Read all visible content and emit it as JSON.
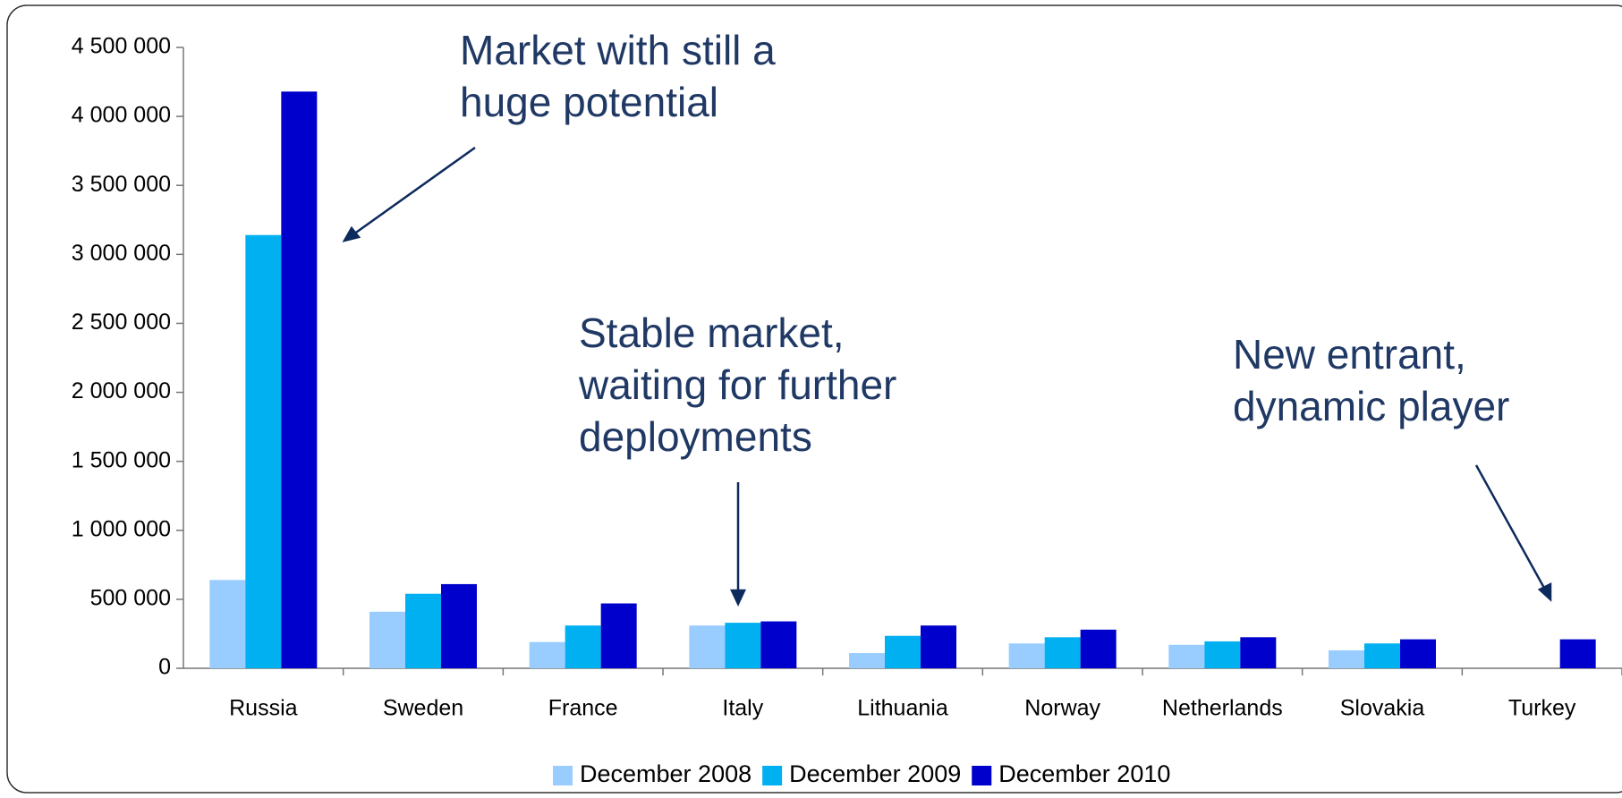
{
  "chart_data": {
    "type": "bar",
    "categories": [
      "Russia",
      "Sweden",
      "France",
      "Italy",
      "Lithuania",
      "Norway",
      "Netherlands",
      "Slovakia",
      "Turkey"
    ],
    "series": [
      {
        "name": "December 2008",
        "color": "#99ccff",
        "values": [
          640000,
          410000,
          190000,
          310000,
          110000,
          180000,
          170000,
          130000,
          null
        ]
      },
      {
        "name": "December 2009",
        "color": "#00b0f0",
        "values": [
          3140000,
          540000,
          310000,
          330000,
          235000,
          225000,
          195000,
          180000,
          null
        ]
      },
      {
        "name": "December 2010",
        "color": "#0000cc",
        "values": [
          4180000,
          610000,
          470000,
          340000,
          310000,
          280000,
          225000,
          210000,
          210000
        ]
      }
    ],
    "ylim": [
      0,
      4500000
    ],
    "yticks": [
      0,
      {
        "value": 500000,
        "label": "500 000"
      },
      {
        "value": 1000000,
        "label": "1 000 000"
      },
      {
        "value": 1500000,
        "label": "1 500 000"
      },
      {
        "value": 2000000,
        "label": "2 000 000"
      },
      {
        "value": 2500000,
        "label": "2 500 000"
      },
      {
        "value": 3000000,
        "label": "3 000 000"
      },
      {
        "value": 3500000,
        "label": "3 500 000"
      },
      {
        "value": 4000000,
        "label": "4 000 000"
      },
      {
        "value": 4500000,
        "label": "4 500 000"
      }
    ],
    "grid": false,
    "legend": "bottom",
    "annotations": [
      {
        "lines": [
          "Market with still a",
          "huge potential"
        ]
      },
      {
        "lines": [
          "Stable market,",
          "waiting for further",
          "deployments"
        ]
      },
      {
        "lines": [
          "New entrant,",
          "dynamic player"
        ]
      }
    ]
  }
}
